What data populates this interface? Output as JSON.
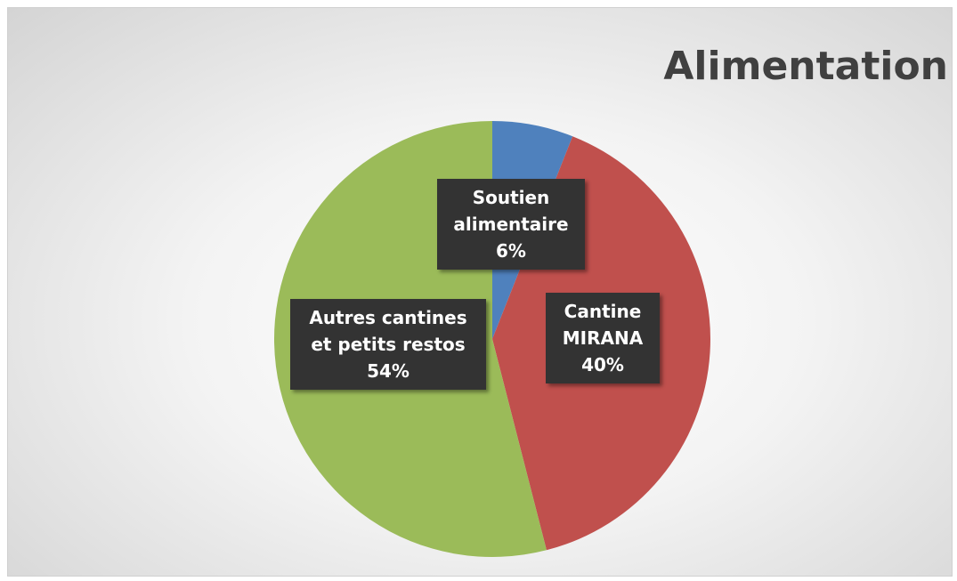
{
  "chart_data": {
    "type": "pie",
    "title": "Alimentation",
    "categories": [
      "Soutien alimentaire",
      "Cantine MIRANA",
      "Autres cantines et petits restos"
    ],
    "values": [
      6,
      40,
      54
    ],
    "value_labels": [
      "6%",
      "40%",
      "54%"
    ],
    "colors": [
      "#4f81bd",
      "#c0504d",
      "#9bbb59"
    ]
  }
}
